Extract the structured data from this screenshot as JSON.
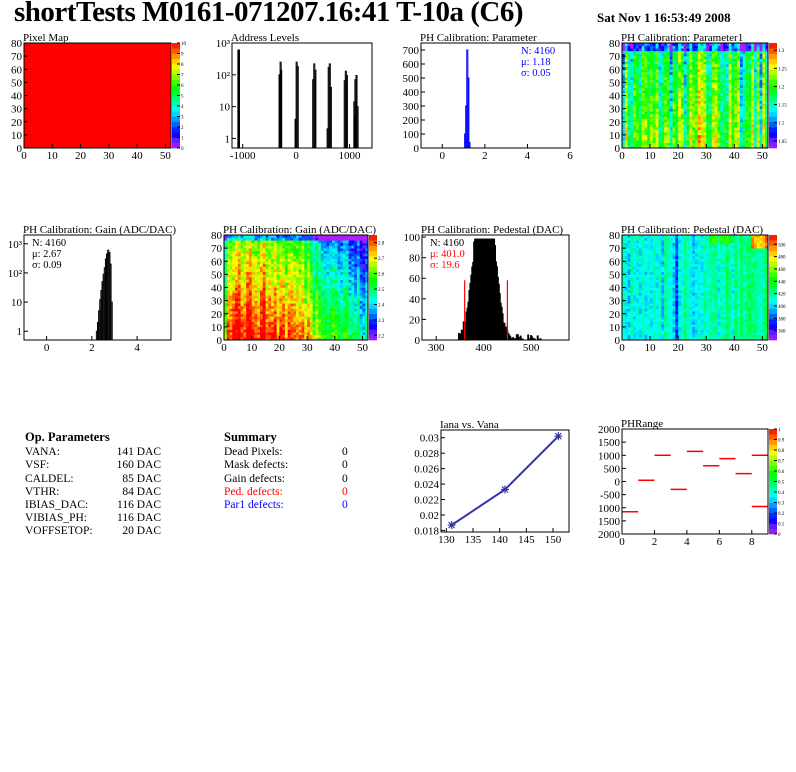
{
  "header": {
    "title": "shortTests M0161-071207.16:41 T-10a (C6)",
    "date": "Sat Nov  1 16:53:49 2008"
  },
  "op_parameters": {
    "title": "Op. Parameters",
    "rows": [
      {
        "name": "VANA:",
        "value": "141 DAC"
      },
      {
        "name": "VSF:",
        "value": "160 DAC"
      },
      {
        "name": "CALDEL:",
        "value": "85 DAC"
      },
      {
        "name": "VTHR:",
        "value": "84 DAC"
      },
      {
        "name": "IBIAS_DAC:",
        "value": "116 DAC"
      },
      {
        "name": "VIBIAS_PH:",
        "value": "116 DAC"
      },
      {
        "name": "VOFFSETOP:",
        "value": "20 DAC"
      }
    ]
  },
  "summary": {
    "title": "Summary",
    "rows": [
      {
        "name": "Dead Pixels:",
        "value": "0",
        "color": "#000000"
      },
      {
        "name": "Mask defects:",
        "value": "0",
        "color": "#000000"
      },
      {
        "name": "Gain defects:",
        "value": "0",
        "color": "#000000"
      },
      {
        "name": "Ped. defects:",
        "value": "0",
        "color": "#ff0000"
      },
      {
        "name": "Par1 defects:",
        "value": "0",
        "color": "#0000ff"
      }
    ]
  },
  "chart_data": [
    {
      "id": "pixmap",
      "type": "heatmap",
      "title": "Pixel Map",
      "xlim": [
        0,
        52
      ],
      "ylim": [
        0,
        80
      ],
      "zlim": [
        0,
        10
      ],
      "uniform_value": 10,
      "xticks": [
        "0",
        "10",
        "20",
        "30",
        "40",
        "50"
      ],
      "yticks": [
        "0",
        "10",
        "20",
        "30",
        "40",
        "50",
        "60",
        "70",
        "80"
      ],
      "zticks": [
        "0",
        "1",
        "2",
        "3",
        "4",
        "5",
        "6",
        "7",
        "8",
        "9",
        "10"
      ]
    },
    {
      "id": "addr",
      "type": "bar",
      "title": "Address Levels",
      "xlim": [
        -1200,
        1420
      ],
      "ylim": [
        0.5,
        1000
      ],
      "ylog": true,
      "xticks": [
        "-1000",
        "0",
        "1000"
      ],
      "yticks": [
        "1",
        "10",
        "10²",
        "10³"
      ],
      "bins": [
        [
          -1090,
          600
        ],
        [
          -1080,
          600
        ],
        [
          -320,
          100
        ],
        [
          -300,
          250
        ],
        [
          -290,
          140
        ],
        [
          -20,
          4
        ],
        [
          0,
          250
        ],
        [
          20,
          180
        ],
        [
          310,
          70
        ],
        [
          330,
          220
        ],
        [
          350,
          140
        ],
        [
          580,
          2
        ],
        [
          600,
          170
        ],
        [
          620,
          220
        ],
        [
          640,
          40
        ],
        [
          900,
          65
        ],
        [
          920,
          130
        ],
        [
          940,
          95
        ],
        [
          1080,
          14
        ],
        [
          1090,
          5
        ],
        [
          1100,
          70
        ],
        [
          1120,
          95
        ],
        [
          1140,
          10
        ]
      ],
      "binwidth": 20,
      "color": "#000000"
    },
    {
      "id": "par",
      "type": "bar",
      "title": "PH Calibration: Parameter",
      "xlim": [
        -1,
        6
      ],
      "ylim": [
        0,
        750
      ],
      "xticks": [
        "0",
        "2",
        "4",
        "6"
      ],
      "yticks": [
        "0",
        "100",
        "200",
        "300",
        "400",
        "500",
        "600",
        "700"
      ],
      "bins": [
        [
          1.05,
          100
        ],
        [
          1.1,
          300
        ],
        [
          1.15,
          700
        ],
        [
          1.2,
          500
        ],
        [
          1.25,
          40
        ]
      ],
      "binwidth": 0.05,
      "color": "#0000ff",
      "stats": [
        {
          "text": "N: 4160",
          "color": "#0000ff"
        },
        {
          "text": "μ: 1.18",
          "color": "#0000ff"
        },
        {
          "text": "σ: 0.05",
          "color": "#0000ff"
        }
      ]
    },
    {
      "id": "par1map",
      "type": "heatmap",
      "title": "PH Calibration: Parameter1",
      "xlim": [
        0,
        52
      ],
      "ylim": [
        0,
        80
      ],
      "zlim": [
        1.03,
        1.32
      ],
      "xticks": [
        "0",
        "10",
        "20",
        "30",
        "40",
        "50"
      ],
      "yticks": [
        "0",
        "10",
        "20",
        "30",
        "40",
        "50",
        "60",
        "70",
        "80"
      ],
      "zticks": [
        "1.05",
        "1.1",
        "1.15",
        "1.2",
        "1.25",
        "1.3"
      ]
    },
    {
      "id": "gain",
      "type": "bar",
      "title": "PH Calibration: Gain (ADC/DAC)",
      "xlim": [
        -1,
        5.5
      ],
      "ylim": [
        0.5,
        2000
      ],
      "ylog": true,
      "xticks": [
        "0",
        "2",
        "4"
      ],
      "yticks": [
        "1",
        "10",
        "10²",
        "10³"
      ],
      "bins": [
        [
          2.2,
          1
        ],
        [
          2.25,
          2
        ],
        [
          2.3,
          5
        ],
        [
          2.35,
          12
        ],
        [
          2.4,
          25
        ],
        [
          2.45,
          50
        ],
        [
          2.5,
          90
        ],
        [
          2.55,
          150
        ],
        [
          2.6,
          300
        ],
        [
          2.65,
          450
        ],
        [
          2.7,
          600
        ],
        [
          2.75,
          500
        ],
        [
          2.8,
          200
        ],
        [
          2.85,
          10
        ]
      ],
      "binwidth": 0.05,
      "color": "#000000",
      "stats": [
        {
          "text": "N: 4160",
          "color": "#000000"
        },
        {
          "text": "μ: 2.67",
          "color": "#000000"
        },
        {
          "text": "σ: 0.09",
          "color": "#000000"
        }
      ]
    },
    {
      "id": "gainmap",
      "type": "heatmap",
      "title": "PH Calibration: Gain (ADC/DAC)",
      "xlim": [
        0,
        52
      ],
      "ylim": [
        0,
        80
      ],
      "zlim": [
        2.17,
        2.85
      ],
      "xticks": [
        "0",
        "10",
        "20",
        "30",
        "40",
        "50"
      ],
      "yticks": [
        "0",
        "10",
        "20",
        "30",
        "40",
        "50",
        "60",
        "70",
        "80"
      ],
      "zticks": [
        "2.2",
        "2.3",
        "2.4",
        "2.5",
        "2.6",
        "2.7",
        "2.8"
      ]
    },
    {
      "id": "ped",
      "type": "bar",
      "title": "PH Calibration: Pedestal (DAC)",
      "xlim": [
        270,
        580
      ],
      "ylim": [
        0,
        102
      ],
      "xticks": [
        "300",
        "400",
        "500"
      ],
      "yticks": [
        "0",
        "20",
        "40",
        "60",
        "80",
        "100"
      ],
      "mean": 401.0,
      "sigma": 19.6,
      "entries": 4160,
      "cut_lines": [
        360,
        450
      ],
      "cut_height": 58,
      "color": "#000000",
      "cut_color": "#ff0000",
      "stats": [
        {
          "text": "N: 4160",
          "color": "#000000"
        },
        {
          "text": "μ: 401.0",
          "color": "#ff0000"
        },
        {
          "text": "σ: 19.6",
          "color": "#ff0000"
        }
      ]
    },
    {
      "id": "pedmap",
      "type": "heatmap",
      "title": "PH Calibration: Pedestal (DAC)",
      "xlim": [
        0,
        52
      ],
      "ylim": [
        0,
        80
      ],
      "zlim": [
        345,
        515
      ],
      "xticks": [
        "0",
        "10",
        "20",
        "30",
        "40",
        "50"
      ],
      "yticks": [
        "0",
        "10",
        "20",
        "30",
        "40",
        "50",
        "60",
        "70",
        "80"
      ],
      "zticks": [
        "360",
        "380",
        "400",
        "420",
        "440",
        "460",
        "480",
        "500"
      ]
    },
    {
      "id": "iana",
      "type": "line",
      "title": "Iana vs. Vana",
      "xlim": [
        129,
        153
      ],
      "ylim": [
        0.0178,
        0.031
      ],
      "xticks": [
        "130",
        "135",
        "140",
        "145",
        "150"
      ],
      "yticks": [
        "0.018",
        "0.02",
        "0.022",
        "0.024",
        "0.026",
        "0.028",
        "0.03"
      ],
      "x": [
        131,
        141,
        151
      ],
      "y": [
        0.0187,
        0.0233,
        0.0302
      ],
      "color": "#3333aa"
    },
    {
      "id": "phrange",
      "type": "heatmap",
      "title": "PHRange",
      "xlim": [
        0,
        9
      ],
      "ylim": [
        -2000,
        2000
      ],
      "zlim": [
        0,
        1
      ],
      "xticks": [
        "0",
        "2",
        "4",
        "6",
        "8"
      ],
      "yticks": [
        "2000",
        "1500",
        "1000",
        "500",
        "0",
        "-500",
        "1000",
        "1500",
        "2000"
      ],
      "zticks": [
        "0",
        "0.1",
        "0.2",
        "0.3",
        "0.4",
        "0.5",
        "0.6",
        "0.7",
        "0.8",
        "0.9",
        "1"
      ],
      "segments": [
        [
          0,
          1,
          -1150
        ],
        [
          1,
          2,
          50
        ],
        [
          2,
          3,
          1000
        ],
        [
          3,
          4,
          -300
        ],
        [
          4,
          5,
          1150
        ],
        [
          5,
          6,
          600
        ],
        [
          6,
          7,
          870
        ],
        [
          7,
          8,
          300
        ],
        [
          8,
          9,
          1000
        ],
        [
          8,
          9,
          -950
        ]
      ],
      "color": "#ff0000"
    }
  ]
}
